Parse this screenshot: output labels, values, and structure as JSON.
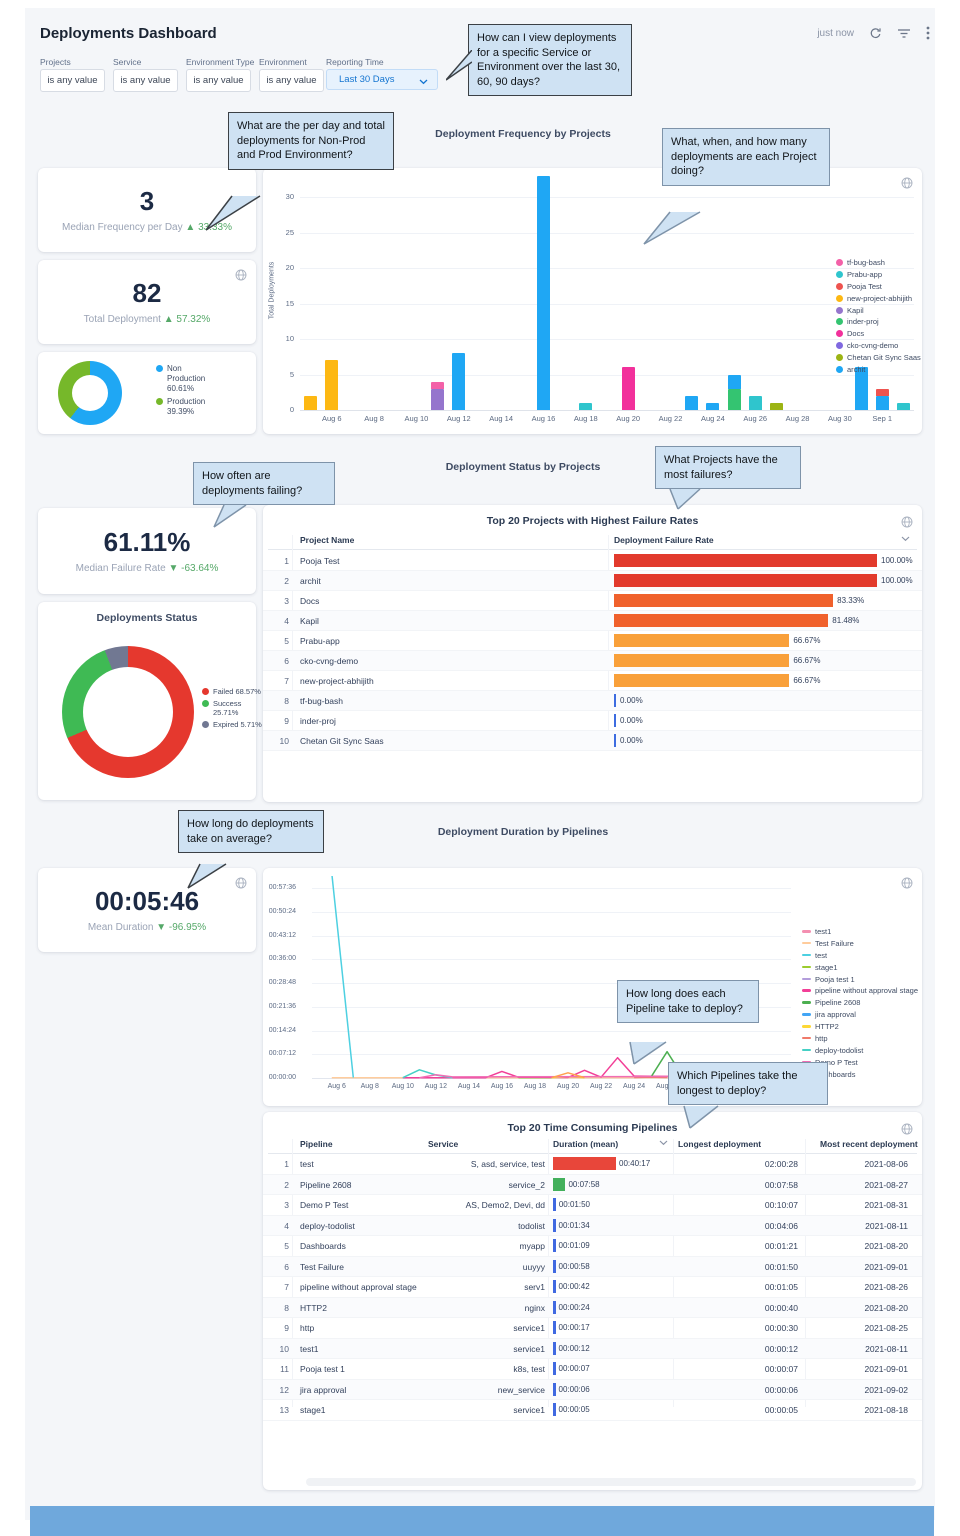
{
  "header": {
    "title": "Deployments Dashboard",
    "updated": "just now",
    "filters": [
      {
        "label": "Projects",
        "value": "is any value"
      },
      {
        "label": "Service",
        "value": "is any value"
      },
      {
        "label": "Environment Type",
        "value": "is any value"
      },
      {
        "label": "Environment",
        "value": "is any value"
      }
    ],
    "reporting_time": {
      "label": "Reporting Time",
      "value": "Last 30 Days"
    }
  },
  "callouts": {
    "c1": "How can I view deployments for a specific Service or Environment over the last 30, 60, 90 days?",
    "c2": "What are the per day and total deployments for Non-Prod and Prod Environment?",
    "c3": "What, when, and how many deployments are each Project doing?",
    "c4": "How often are deployments failing?",
    "c5": "What Projects have the most failures?",
    "c6": "How long do deployments take on average?",
    "c7": "How long does each Pipeline take to deploy?",
    "c8": "Which Pipelines take the longest to deploy?"
  },
  "sections": {
    "frequency_title": "Deployment Frequency by Projects",
    "status_title": "Deployment Status by Projects",
    "duration_title": "Deployment Duration by Pipelines"
  },
  "kpis": {
    "median_frequency": {
      "value": "3",
      "label": "Median Frequency per Day",
      "delta": "▲ 33.33%"
    },
    "total_deployment": {
      "value": "82",
      "label": "Total Deployment",
      "delta": "▲ 57.32%"
    },
    "median_failure": {
      "value": "61.11%",
      "label": "Median Failure Rate",
      "delta": "▼ -63.64%"
    },
    "mean_duration": {
      "value": "00:05:46",
      "label": "Mean Duration",
      "delta": "▼ -96.95%"
    }
  },
  "env_donut": {
    "slices": [
      {
        "label": "Non Production 60.61%",
        "pct": 60.61,
        "color": "#1fa7f4"
      },
      {
        "label": "Production 39.39%",
        "pct": 39.39,
        "color": "#76b82a"
      }
    ]
  },
  "status_donut": {
    "title": "Deployments Status",
    "slices": [
      {
        "label": "Failed 68.57%",
        "pct": 68.57,
        "color": "#e5382e"
      },
      {
        "label": "Success 25.71%",
        "pct": 25.71,
        "color": "#3fba54"
      },
      {
        "label": "Expired 5.71%",
        "pct": 5.71,
        "color": "#717892"
      }
    ]
  },
  "chart_data": [
    {
      "type": "bar",
      "title": "Deployment Frequency by Projects",
      "ylabel": "Total Deployments",
      "ylim": [
        0,
        33
      ],
      "yticks": [
        0,
        5,
        10,
        15,
        20,
        25,
        30
      ],
      "x_range": "Aug 5 - Sep 2",
      "xticks": [
        "Aug 6",
        "Aug 8",
        "Aug 10",
        "Aug 12",
        "Aug 14",
        "Aug 16",
        "Aug 18",
        "Aug 20",
        "Aug 22",
        "Aug 24",
        "Aug 26",
        "Aug 28",
        "Aug 30",
        "Sep 1"
      ],
      "legend": [
        {
          "label": "tf-bug-bash",
          "color": "#f361a8"
        },
        {
          "label": "Prabu-app",
          "color": "#2fc5cd"
        },
        {
          "label": "Pooja Test",
          "color": "#ee534f"
        },
        {
          "label": "new-project-abhijith",
          "color": "#fdb813"
        },
        {
          "label": "Kapil",
          "color": "#9575cd"
        },
        {
          "label": "inder-proj",
          "color": "#34c471"
        },
        {
          "label": "Docs",
          "color": "#f2309b"
        },
        {
          "label": "cko-cvng-demo",
          "color": "#8069e0"
        },
        {
          "label": "Chetan Git Sync Saas",
          "color": "#9cb414"
        },
        {
          "label": "archit",
          "color": "#1fa7f4"
        }
      ],
      "bars": [
        {
          "day": 0,
          "date": "Aug 5",
          "segments": [
            {
              "value": 2,
              "color": "#fdb813",
              "project": "new-project-abhijith"
            }
          ]
        },
        {
          "day": 1,
          "date": "Aug 6",
          "segments": [
            {
              "value": 7,
              "color": "#fdb813",
              "project": "new-project-abhijith"
            }
          ]
        },
        {
          "day": 6,
          "date": "Aug 11",
          "segments": [
            {
              "value": 3,
              "color": "#9575cd",
              "project": "Kapil"
            },
            {
              "value": 1,
              "color": "#f361a8",
              "project": "tf-bug-bash"
            }
          ]
        },
        {
          "day": 7,
          "date": "Aug 12",
          "segments": [
            {
              "value": 8,
              "color": "#1fa7f4",
              "project": "archit"
            }
          ]
        },
        {
          "day": 11,
          "date": "Aug 16",
          "segments": [
            {
              "value": 33,
              "color": "#1fa7f4",
              "project": "archit"
            }
          ]
        },
        {
          "day": 13,
          "date": "Aug 18",
          "segments": [
            {
              "value": 1,
              "color": "#2fc5cd",
              "project": "Prabu-app"
            }
          ]
        },
        {
          "day": 15,
          "date": "Aug 20",
          "segments": [
            {
              "value": 6,
              "color": "#f2309b",
              "project": "Docs"
            }
          ]
        },
        {
          "day": 18,
          "date": "Aug 23",
          "segments": [
            {
              "value": 2,
              "color": "#1fa7f4",
              "project": "archit"
            }
          ]
        },
        {
          "day": 19,
          "date": "Aug 24",
          "segments": [
            {
              "value": 1,
              "color": "#1fa7f4",
              "project": "archit"
            }
          ]
        },
        {
          "day": 20,
          "date": "Aug 25",
          "segments": [
            {
              "value": 3,
              "color": "#34c471",
              "project": "inder-proj"
            },
            {
              "value": 2,
              "color": "#1fa7f4",
              "project": "archit"
            }
          ]
        },
        {
          "day": 21,
          "date": "Aug 26",
          "segments": [
            {
              "value": 2,
              "color": "#2fc5cd",
              "project": "Prabu-app"
            }
          ]
        },
        {
          "day": 22,
          "date": "Aug 27",
          "segments": [
            {
              "value": 1,
              "color": "#9cb414",
              "project": "Chetan Git Sync Saas"
            }
          ]
        },
        {
          "day": 26,
          "date": "Aug 31",
          "segments": [
            {
              "value": 6,
              "color": "#1fa7f4",
              "project": "archit"
            }
          ]
        },
        {
          "day": 27,
          "date": "Sep 1",
          "segments": [
            {
              "value": 2,
              "color": "#1fa7f4",
              "project": "archit"
            },
            {
              "value": 1,
              "color": "#ee534f",
              "project": "Pooja Test"
            }
          ]
        },
        {
          "day": 28,
          "date": "Sep 2",
          "segments": [
            {
              "value": 1,
              "color": "#2fc5cd",
              "project": "Prabu-app"
            }
          ]
        }
      ]
    },
    {
      "type": "table",
      "title": "Top 20 Projects with Highest Failure Rates",
      "columns": [
        "Project Name",
        "Deployment Failure Rate"
      ],
      "rows": [
        {
          "rank": 1,
          "project": "Pooja Test",
          "rate": 100.0,
          "rate_label": "100.00%",
          "bar_color": "#e23a2c"
        },
        {
          "rank": 2,
          "project": "archit",
          "rate": 100.0,
          "rate_label": "100.00%",
          "bar_color": "#e23a2c"
        },
        {
          "rank": 3,
          "project": "Docs",
          "rate": 83.33,
          "rate_label": "83.33%",
          "bar_color": "#f0612c"
        },
        {
          "rank": 4,
          "project": "Kapil",
          "rate": 81.48,
          "rate_label": "81.48%",
          "bar_color": "#f0612c"
        },
        {
          "rank": 5,
          "project": "Prabu-app",
          "rate": 66.67,
          "rate_label": "66.67%",
          "bar_color": "#f9a03a"
        },
        {
          "rank": 6,
          "project": "cko-cvng-demo",
          "rate": 66.67,
          "rate_label": "66.67%",
          "bar_color": "#f9a03a"
        },
        {
          "rank": 7,
          "project": "new-project-abhijith",
          "rate": 66.67,
          "rate_label": "66.67%",
          "bar_color": "#f9a03a"
        },
        {
          "rank": 8,
          "project": "tf-bug-bash",
          "rate": 0.0,
          "rate_label": "0.00%",
          "bar_color": "#3d6ce0"
        },
        {
          "rank": 9,
          "project": "inder-proj",
          "rate": 0.0,
          "rate_label": "0.00%",
          "bar_color": "#3d6ce0"
        },
        {
          "rank": 10,
          "project": "Chetan Git Sync Saas",
          "rate": 0.0,
          "rate_label": "0.00%",
          "bar_color": "#3d6ce0"
        }
      ]
    },
    {
      "type": "line",
      "title": "Deployment Duration by Pipelines",
      "yticks": [
        "00:00:00",
        "00:07:12",
        "00:14:24",
        "00:21:36",
        "00:28:48",
        "00:36:00",
        "00:43:12",
        "00:50:24",
        "00:57:36"
      ],
      "xticks": [
        "Aug 6",
        "Aug 8",
        "Aug 10",
        "Aug 12",
        "Aug 14",
        "Aug 16",
        "Aug 18",
        "Aug 20",
        "Aug 22",
        "Aug 24",
        "Aug 26",
        "Aug 28",
        "Aug 30",
        "Sep 1"
      ],
      "series": [
        {
          "name": "test1",
          "color": "#f48fb1",
          "points": [
            [
              24,
              5
            ],
            [
              28,
              5
            ]
          ]
        },
        {
          "name": "Test Failure",
          "color": "#ffcc9c",
          "points": [
            [
              0.7,
              6
            ],
            [
              27.5,
              6
            ]
          ]
        },
        {
          "name": "test",
          "color": "#4dd0e1",
          "points": [
            [
              0.7,
              3720
            ],
            [
              2,
              8
            ]
          ]
        },
        {
          "name": "stage1",
          "color": "#9ccc2e",
          "points": [
            [
              12,
              5
            ],
            [
              14,
              5
            ]
          ]
        },
        {
          "name": "Pooja test 1",
          "color": "#b39ddb",
          "points": [
            [
              26.5,
              6
            ],
            [
              27.5,
              6
            ]
          ]
        },
        {
          "name": "pipeline without approval stage",
          "color": "#f23f97",
          "points": [
            [
              5,
              4
            ],
            [
              10,
              4
            ],
            [
              11,
              120
            ],
            [
              12,
              12
            ],
            [
              15,
              10
            ],
            [
              16,
              140
            ],
            [
              17,
              15
            ],
            [
              18,
              370
            ],
            [
              19,
              35
            ],
            [
              21,
              30
            ],
            [
              23,
              28
            ],
            [
              24,
              20
            ]
          ]
        },
        {
          "name": "Pipeline 2608",
          "color": "#4caf50",
          "points": [
            [
              20,
              6
            ],
            [
              21,
              478
            ],
            [
              22,
              6
            ]
          ]
        },
        {
          "name": "jira approval",
          "color": "#42a5f5",
          "points": [
            [
              27,
              6
            ],
            [
              28,
              6
            ]
          ]
        },
        {
          "name": "HTTP2",
          "color": "#fdd835",
          "points": [
            [
              14,
              5
            ],
            [
              15,
              22
            ],
            [
              16,
              5
            ]
          ]
        },
        {
          "name": "http",
          "color": "#f07a6a",
          "points": [
            [
              19,
              10
            ],
            [
              20,
              16
            ],
            [
              21,
              9
            ]
          ]
        },
        {
          "name": "deploy-todolist",
          "color": "#45d0c5",
          "points": [
            [
              5,
              5
            ],
            [
              6,
              150
            ],
            [
              7,
              55
            ],
            [
              8,
              6
            ]
          ]
        },
        {
          "name": "Demo P Test",
          "color": "#f06eb5",
          "points": [
            [
              6,
              5
            ],
            [
              7,
              60
            ],
            [
              8,
              20
            ],
            [
              19,
              25
            ],
            [
              20,
              28
            ],
            [
              22,
              25
            ],
            [
              23,
              25
            ]
          ]
        },
        {
          "name": "Dashboards",
          "color": "#ffa14f",
          "points": [
            [
              14,
              6
            ],
            [
              15,
              95
            ],
            [
              16,
              8
            ]
          ]
        }
      ]
    },
    {
      "type": "table",
      "title": "Top 20 Time Consuming Pipelines",
      "columns": [
        "Pipeline",
        "Service",
        "Duration (mean)",
        "Longest deployment",
        "Most recent deployment"
      ],
      "rows": [
        {
          "rank": 1,
          "pipeline": "test",
          "service": "S, asd, service, test",
          "duration": "00:40:17",
          "bar_color": "#e8463a",
          "longest": "02:00:28",
          "recent": "2021-08-06"
        },
        {
          "rank": 2,
          "pipeline": "Pipeline 2608",
          "service": "service_2",
          "duration": "00:07:58",
          "bar_color": "#43b05c",
          "longest": "00:07:58",
          "recent": "2021-08-27"
        },
        {
          "rank": 3,
          "pipeline": "Demo P Test",
          "service": "AS, Demo2, Devi, dd",
          "duration": "00:01:50",
          "bar_color": "#4069e1",
          "longest": "00:10:07",
          "recent": "2021-08-31"
        },
        {
          "rank": 4,
          "pipeline": "deploy-todolist",
          "service": "todolist",
          "duration": "00:01:34",
          "bar_color": "#4069e1",
          "longest": "00:04:06",
          "recent": "2021-08-11"
        },
        {
          "rank": 5,
          "pipeline": "Dashboards",
          "service": "myapp",
          "duration": "00:01:09",
          "bar_color": "#4069e1",
          "longest": "00:01:21",
          "recent": "2021-08-20"
        },
        {
          "rank": 6,
          "pipeline": "Test Failure",
          "service": "uuyyy",
          "duration": "00:00:58",
          "bar_color": "#4069e1",
          "longest": "00:01:50",
          "recent": "2021-09-01"
        },
        {
          "rank": 7,
          "pipeline": "pipeline without approval stage",
          "service": "serv1",
          "duration": "00:00:42",
          "bar_color": "#4069e1",
          "longest": "00:01:05",
          "recent": "2021-08-26"
        },
        {
          "rank": 8,
          "pipeline": "HTTP2",
          "service": "nginx",
          "duration": "00:00:24",
          "bar_color": "#4069e1",
          "longest": "00:00:40",
          "recent": "2021-08-20"
        },
        {
          "rank": 9,
          "pipeline": "http",
          "service": "service1",
          "duration": "00:00:17",
          "bar_color": "#4069e1",
          "longest": "00:00:30",
          "recent": "2021-08-25"
        },
        {
          "rank": 10,
          "pipeline": "test1",
          "service": "service1",
          "duration": "00:00:12",
          "bar_color": "#4069e1",
          "longest": "00:00:12",
          "recent": "2021-08-11"
        },
        {
          "rank": 11,
          "pipeline": "Pooja test 1",
          "service": "k8s, test",
          "duration": "00:00:07",
          "bar_color": "#4069e1",
          "longest": "00:00:07",
          "recent": "2021-09-01"
        },
        {
          "rank": 12,
          "pipeline": "jira approval",
          "service": "new_service",
          "duration": "00:00:06",
          "bar_color": "#4069e1",
          "longest": "00:00:06",
          "recent": "2021-09-02"
        },
        {
          "rank": 13,
          "pipeline": "stage1",
          "service": "service1",
          "duration": "00:00:05",
          "bar_color": "#4069e1",
          "longest": "00:00:05",
          "recent": "2021-08-18"
        }
      ]
    }
  ]
}
